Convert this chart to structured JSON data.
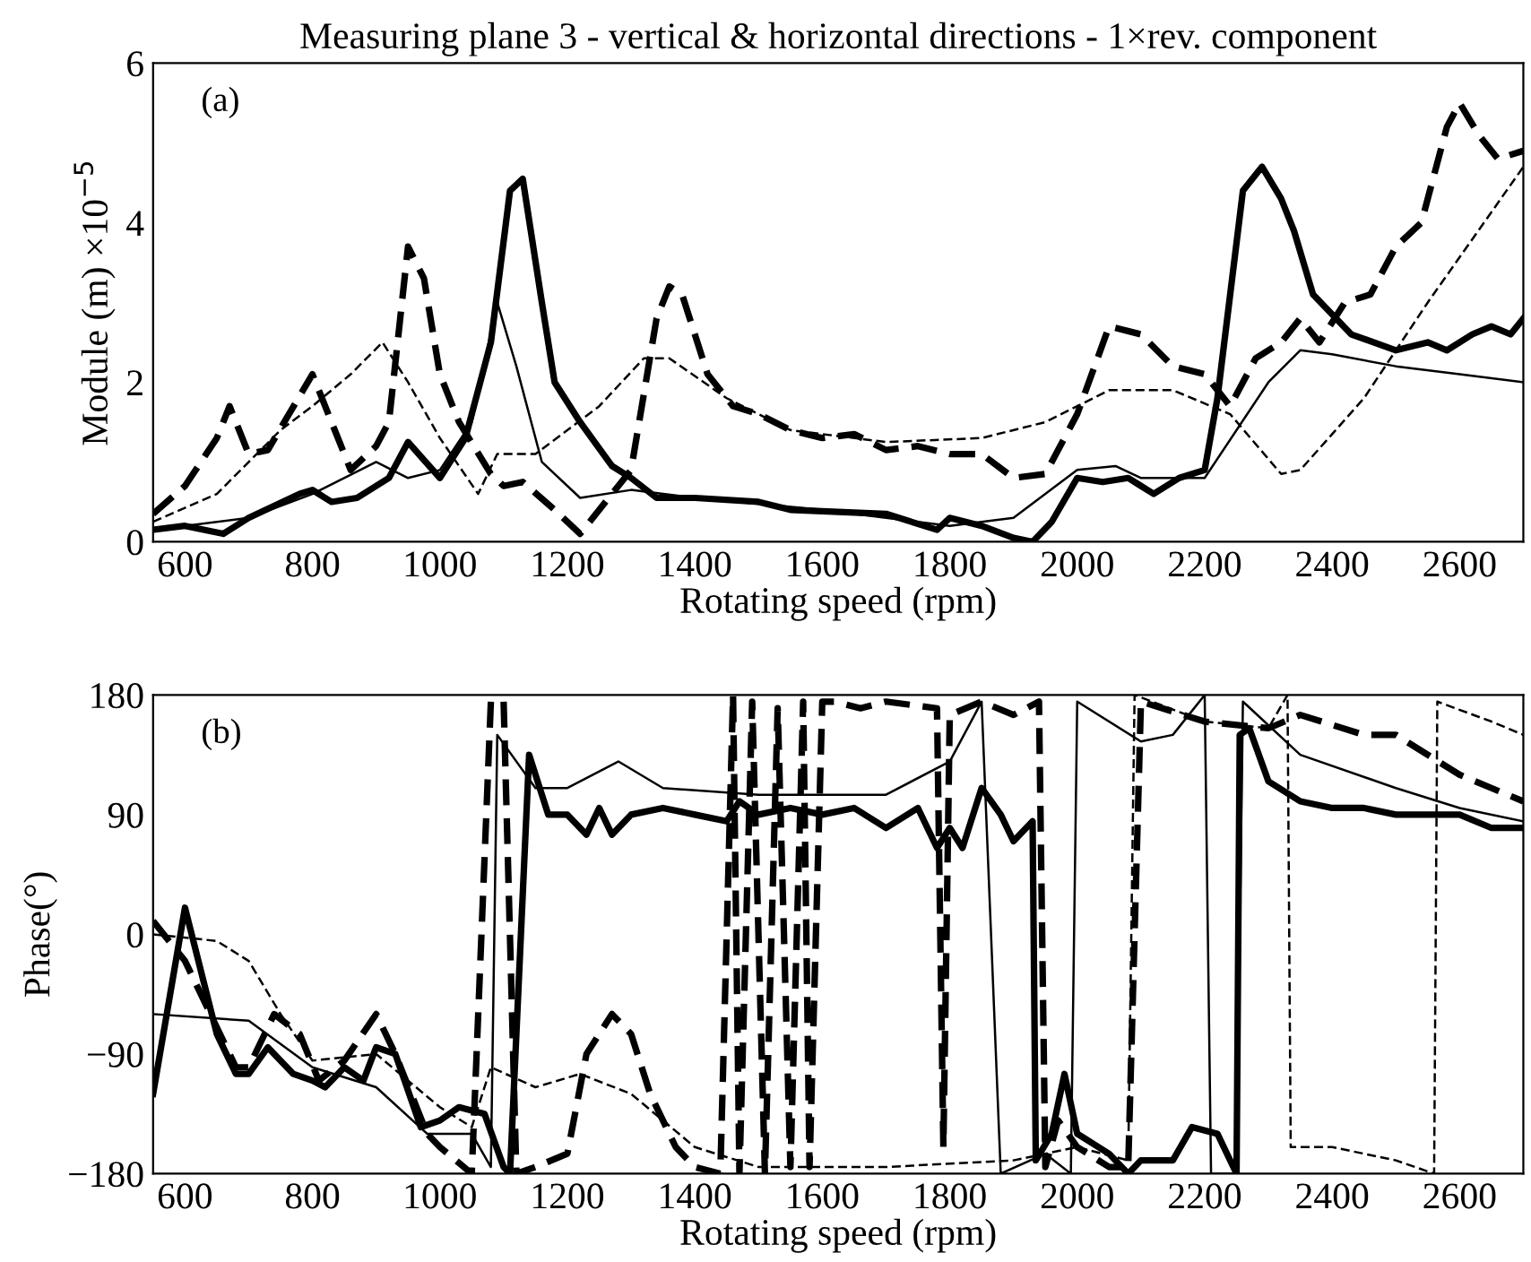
{
  "chart_data": [
    {
      "type": "line",
      "title": "Measuring plane 3 - vertical & horizontal directions - 1×rev. component",
      "xlabel": "Rotating speed (rpm)",
      "ylabel": "Module (m) ×10$^{−5}$",
      "annotations": [
        "(a)"
      ],
      "xlim": [
        550,
        2700
      ],
      "xticks": [
        600,
        800,
        1000,
        1200,
        1400,
        1600,
        1800,
        2000,
        2200,
        2400,
        2600
      ],
      "ylim": [
        0,
        6
      ],
      "yticks": [
        0,
        2,
        4,
        6
      ],
      "grid": false,
      "series": [
        {
          "color": "#000000",
          "line_style": "solid",
          "x": [
            550,
            600,
            660,
            700,
            780,
            800,
            830,
            870,
            920,
            950,
            1000,
            1040,
            1080,
            1110,
            1130,
            1160,
            1180,
            1220,
            1270,
            1300,
            1340,
            1400,
            1500,
            1550,
            1700,
            1780,
            1800,
            1850,
            1900,
            1930,
            1960,
            2000,
            2040,
            2080,
            2120,
            2160,
            2200,
            2220,
            2260,
            2290,
            2320,
            2340,
            2370,
            2430,
            2500,
            2550,
            2580,
            2620,
            2650,
            2680,
            2700
          ],
          "values": [
            0.15,
            0.2,
            0.1,
            0.3,
            0.6,
            0.65,
            0.5,
            0.55,
            0.8,
            1.25,
            0.8,
            1.3,
            2.5,
            4.4,
            4.55,
            3.0,
            2.0,
            1.5,
            0.95,
            0.8,
            0.55,
            0.55,
            0.5,
            0.4,
            0.35,
            0.15,
            0.3,
            0.2,
            0.05,
            0.0,
            0.25,
            0.8,
            0.75,
            0.8,
            0.6,
            0.8,
            0.9,
            1.8,
            4.4,
            4.7,
            4.3,
            3.9,
            3.1,
            2.6,
            2.4,
            2.5,
            2.4,
            2.6,
            2.7,
            2.6,
            2.8
          ]
        },
        {
          "color": "#000000",
          "line_style": "dashed",
          "x": [
            550,
            600,
            650,
            670,
            700,
            730,
            800,
            860,
            900,
            920,
            950,
            975,
            1000,
            1030,
            1080,
            1100,
            1130,
            1180,
            1220,
            1240,
            1300,
            1340,
            1360,
            1380,
            1420,
            1460,
            1500,
            1550,
            1600,
            1650,
            1700,
            1750,
            1800,
            1850,
            1900,
            1950,
            2000,
            2050,
            2100,
            2150,
            2200,
            2240,
            2280,
            2320,
            2350,
            2380,
            2420,
            2460,
            2500,
            2540,
            2580,
            2600,
            2630,
            2660,
            2700
          ],
          "values": [
            0.35,
            0.7,
            1.3,
            1.7,
            1.1,
            1.15,
            2.1,
            0.9,
            1.2,
            1.5,
            3.7,
            3.3,
            2.1,
            1.5,
            0.85,
            0.7,
            0.75,
            0.4,
            0.1,
            0.3,
            0.9,
            2.8,
            3.2,
            3.1,
            2.1,
            1.7,
            1.6,
            1.4,
            1.3,
            1.35,
            1.15,
            1.2,
            1.1,
            1.1,
            0.8,
            0.85,
            1.6,
            2.7,
            2.6,
            2.2,
            2.1,
            1.7,
            2.3,
            2.5,
            2.8,
            2.5,
            3.0,
            3.1,
            3.7,
            4.0,
            5.2,
            5.5,
            5.1,
            4.8,
            4.9
          ]
        },
        {
          "color": "#000000",
          "line_style": "solid",
          "x": [
            550,
            700,
            800,
            900,
            950,
            1000,
            1050,
            1090,
            1120,
            1160,
            1220,
            1300,
            1400,
            1600,
            1800,
            1900,
            2000,
            2060,
            2100,
            2200,
            2300,
            2350,
            2400,
            2500,
            2600,
            2700
          ],
          "values": [
            0.15,
            0.3,
            0.6,
            1.0,
            0.8,
            0.9,
            1.5,
            3.0,
            2.2,
            1.0,
            0.55,
            0.65,
            0.55,
            0.4,
            0.2,
            0.3,
            0.9,
            0.95,
            0.8,
            0.8,
            2.0,
            2.4,
            2.35,
            2.2,
            2.1,
            2.0
          ]
        },
        {
          "color": "#000000",
          "line_style": "dashed",
          "x": [
            550,
            650,
            750,
            800,
            860,
            910,
            950,
            1000,
            1060,
            1090,
            1150,
            1250,
            1320,
            1360,
            1450,
            1550,
            1700,
            1850,
            1950,
            2050,
            2150,
            2240,
            2320,
            2350,
            2450,
            2550,
            2700
          ],
          "values": [
            0.25,
            0.6,
            1.4,
            1.7,
            2.1,
            2.5,
            2.0,
            1.3,
            0.6,
            1.1,
            1.1,
            1.7,
            2.3,
            2.3,
            1.8,
            1.4,
            1.25,
            1.3,
            1.5,
            1.9,
            1.9,
            1.6,
            0.85,
            0.9,
            1.8,
            3.0,
            4.7
          ]
        }
      ]
    },
    {
      "type": "line",
      "xlabel": "Rotating speed (rpm)",
      "ylabel": "Phase(°)",
      "annotations": [
        "(b)"
      ],
      "xlim": [
        550,
        2700
      ],
      "xticks": [
        600,
        800,
        1000,
        1200,
        1400,
        1600,
        1800,
        2000,
        2200,
        2400,
        2600
      ],
      "ylim": [
        -180,
        180
      ],
      "yticks": [
        {
          "value": -180,
          "label": "−180"
        },
        {
          "value": -90,
          "label": "−90"
        },
        0,
        90,
        180
      ],
      "grid": false,
      "series": [
        {
          "color": "#000000",
          "line_style": "solid",
          "x": [
            550,
            600,
            650,
            680,
            700,
            730,
            770,
            800,
            820,
            850,
            880,
            900,
            930,
            970,
            1000,
            1030,
            1070,
            1100,
            1110,
            1140,
            1170,
            1200,
            1230,
            1250,
            1270,
            1300,
            1350,
            1400,
            1450,
            1470,
            1500,
            1550,
            1600,
            1650,
            1700,
            1750,
            1780,
            1800,
            1820,
            1850,
            1880,
            1900,
            1930,
            1935,
            1960,
            1980,
            2000,
            2050,
            2080,
            2100,
            2150,
            2180,
            2220,
            2250,
            2255,
            2270,
            2300,
            2350,
            2400,
            2450,
            2500,
            2550,
            2600,
            2650,
            2700
          ],
          "values": [
            -120,
            20,
            -75,
            -105,
            -105,
            -85,
            -105,
            -110,
            -115,
            -100,
            -110,
            -85,
            -90,
            -145,
            -140,
            -130,
            -135,
            -175,
            -180,
            135,
            90,
            90,
            75,
            95,
            75,
            90,
            95,
            90,
            85,
            100,
            90,
            95,
            90,
            95,
            80,
            95,
            65,
            80,
            65,
            110,
            90,
            70,
            85,
            -170,
            -150,
            -105,
            -150,
            -165,
            -180,
            -170,
            -170,
            -145,
            -150,
            -180,
            150,
            155,
            115,
            100,
            95,
            95,
            90,
            90,
            90,
            80,
            80
          ]
        },
        {
          "color": "#000000",
          "line_style": "dashed",
          "x": [
            550,
            600,
            650,
            680,
            700,
            740,
            780,
            810,
            850,
            900,
            930,
            980,
            1000,
            1050,
            1080,
            1100,
            1120,
            1150,
            1200,
            1230,
            1270,
            1300,
            1330,
            1370,
            1400,
            1440,
            1460,
            1470,
            1490,
            1510,
            1530,
            1550,
            1570,
            1580,
            1600,
            1620,
            1660,
            1700,
            1780,
            1790,
            1800,
            1850,
            1900,
            1940,
            1950,
            1970,
            2000,
            2050,
            2080,
            2100,
            2200,
            2300,
            2350,
            2450,
            2500,
            2550,
            2600,
            2650,
            2700
          ],
          "values": [
            10,
            -20,
            -70,
            -100,
            -100,
            -60,
            -75,
            -110,
            -95,
            -60,
            -90,
            -150,
            -160,
            -180,
            175,
            175,
            -180,
            -175,
            -165,
            -90,
            -60,
            -75,
            -120,
            -160,
            -175,
            -180,
            180,
            -180,
            175,
            -180,
            170,
            -175,
            175,
            -175,
            175,
            175,
            170,
            175,
            170,
            -160,
            165,
            175,
            165,
            175,
            -175,
            -140,
            -160,
            -175,
            -175,
            175,
            160,
            155,
            165,
            150,
            150,
            135,
            120,
            110,
            100
          ]
        },
        {
          "color": "#000000",
          "line_style": "solid",
          "x": [
            550,
            700,
            800,
            900,
            980,
            1050,
            1080,
            1090,
            1150,
            1200,
            1280,
            1350,
            1500,
            1700,
            1800,
            1850,
            1880,
            1950,
            1990,
            2000,
            2100,
            2150,
            2200,
            2210,
            2250,
            2260,
            2350,
            2500,
            2600,
            2700
          ],
          "values": [
            -60,
            -65,
            -100,
            -115,
            -150,
            -150,
            -175,
            150,
            110,
            110,
            130,
            110,
            105,
            105,
            130,
            175,
            -180,
            -165,
            -180,
            175,
            145,
            150,
            180,
            -180,
            -180,
            175,
            135,
            110,
            95,
            85
          ]
        },
        {
          "color": "#000000",
          "line_style": "dashed",
          "x": [
            550,
            650,
            700,
            750,
            800,
            900,
            1000,
            1050,
            1080,
            1150,
            1220,
            1300,
            1400,
            1500,
            1700,
            1900,
            2000,
            2080,
            2090,
            2200,
            2300,
            2330,
            2335,
            2400,
            2500,
            2560,
            2565,
            2650,
            2700
          ],
          "values": [
            0,
            -5,
            -20,
            -60,
            -95,
            -90,
            -130,
            -145,
            -100,
            -115,
            -105,
            -120,
            -160,
            -175,
            -175,
            -170,
            -160,
            -170,
            180,
            160,
            155,
            180,
            -160,
            -160,
            -170,
            -180,
            175,
            160,
            150
          ]
        }
      ]
    }
  ]
}
